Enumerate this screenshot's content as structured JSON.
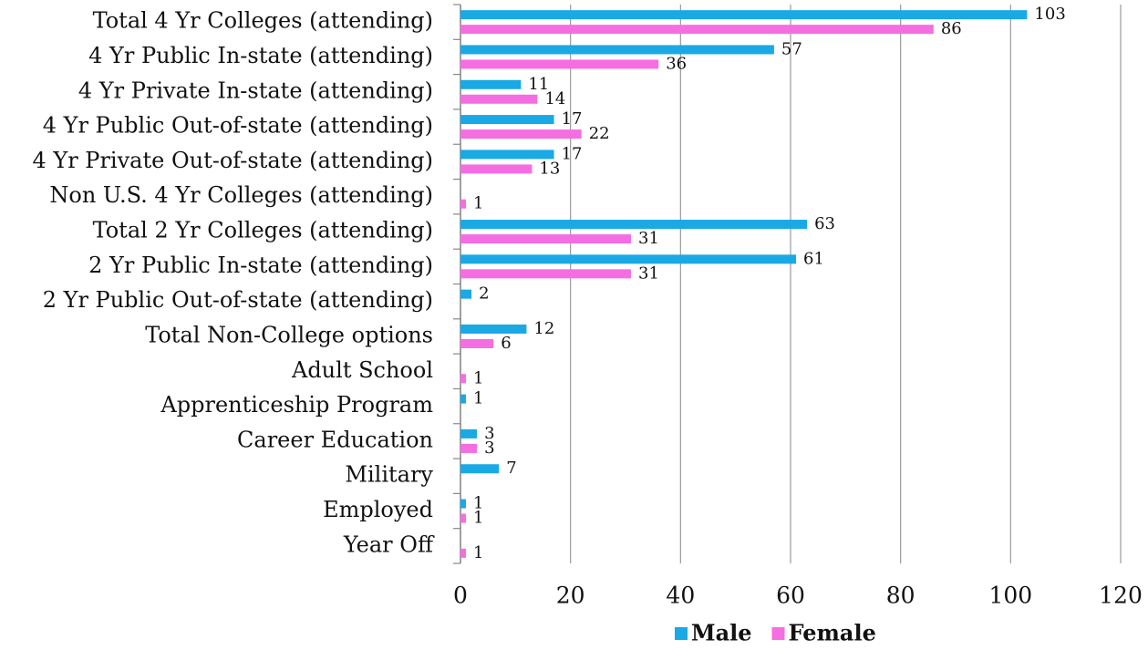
{
  "chart_data": {
    "type": "bar",
    "orientation": "horizontal",
    "categories": [
      "Total 4 Yr Colleges (attending)",
      "4 Yr Public In-state  (attending)",
      "4 Yr Private In-state (attending)",
      "4 Yr Public Out-of-state (attending)",
      "4 Yr Private Out-of-state (attending)",
      "Non U.S. 4 Yr Colleges (attending)",
      "Total 2 Yr Colleges (attending)",
      "2 Yr Public In-state (attending)",
      "2 Yr Public Out-of-state (attending)",
      "Total Non-College options",
      "Adult School",
      "Apprenticeship Program",
      "Career Education",
      "Military",
      "Employed",
      "Year Off"
    ],
    "series": [
      {
        "name": "Male",
        "color": "#1aa9e4",
        "values": [
          103,
          57,
          11,
          17,
          17,
          null,
          63,
          61,
          2,
          12,
          null,
          1,
          3,
          7,
          1,
          null
        ]
      },
      {
        "name": "Female",
        "color": "#f46ee2",
        "values": [
          86,
          36,
          14,
          22,
          13,
          1,
          31,
          31,
          null,
          6,
          1,
          null,
          3,
          null,
          1,
          1
        ]
      }
    ],
    "xlim": [
      0,
      120
    ],
    "xticks": [
      0,
      20,
      40,
      60,
      80,
      100,
      120
    ],
    "grid": true,
    "legend": "bottom"
  }
}
